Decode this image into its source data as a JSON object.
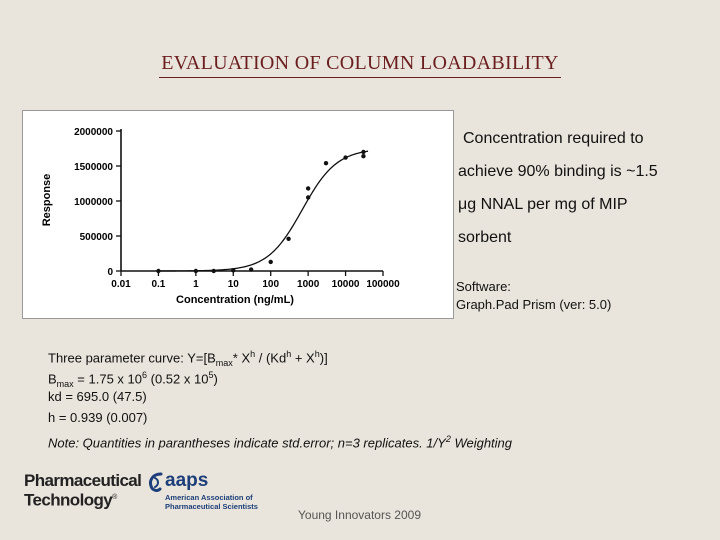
{
  "slide": {
    "title": "EVALUATION OF COLUMN LOADABILITY",
    "note_lines": [
      "Concentration required to",
      "achieve 90% binding is ~1.5",
      "μg NNAL per mg of MIP",
      "sorbent"
    ],
    "software_label": "Software:",
    "software_name": "Graph.Pad Prism (ver: 5.0)",
    "equation": {
      "prefix": "Three parameter curve: Y=[B",
      "bmax_sub": "max",
      "mid1": "* X",
      "h1": "h",
      "mid2": " / (Kd",
      "h2": "h",
      "mid3": " + X",
      "h3": "h",
      "suffix": ")]"
    },
    "bmax": {
      "label": "B",
      "sub": "max",
      "text1": " = 1.75 x 10",
      "exp1": "6",
      "text2": " (0.52 x 10",
      "exp2": "5",
      "text3": ")"
    },
    "kd_line": "kd = 695.0 (47.5)",
    "h_line": "h = 0.939 (0.007)",
    "footnote_main": "Note: Quantities in parantheses indicate std.error; n=3 replicates. 1/Y",
    "footnote_exp": "2",
    "footnote_tail": " Weighting",
    "logo_pt_line1": "Pharmaceutical",
    "logo_pt_line2": "Technology",
    "logo_pt_reg": "®",
    "logo_aaps_word": "aaps",
    "logo_aaps_line1": "American Association of",
    "logo_aaps_line2": "Pharmaceutical Scientists",
    "footer": "Young Innovators 2009"
  },
  "chart_data": {
    "type": "scatter",
    "x_scale": "log",
    "xlabel": "Concentration (ng/mL)",
    "ylabel": "Response",
    "x_tick_labels": [
      "0.01",
      "0.1",
      "1",
      "10",
      "100",
      "1000",
      "10000",
      "100000"
    ],
    "y_tick_labels": [
      "0",
      "500000",
      "1000000",
      "1500000",
      "2000000"
    ],
    "ylim": [
      0,
      2000000
    ],
    "points": [
      {
        "x": 0.1,
        "y": 0
      },
      {
        "x": 1,
        "y": 0
      },
      {
        "x": 3,
        "y": 0
      },
      {
        "x": 10,
        "y": 10000
      },
      {
        "x": 30,
        "y": 20000
      },
      {
        "x": 100,
        "y": 130000
      },
      {
        "x": 300,
        "y": 460000
      },
      {
        "x": 1000,
        "y": 1050000
      },
      {
        "x": 1000,
        "y": 1180000
      },
      {
        "x": 3000,
        "y": 1540000
      },
      {
        "x": 10000,
        "y": 1620000
      },
      {
        "x": 30000,
        "y": 1700000
      },
      {
        "x": 30000,
        "y": 1640000
      }
    ],
    "fit": {
      "bmax": 1750000,
      "kd": 695.0,
      "h": 0.939
    },
    "grid": false,
    "legend": "none"
  }
}
